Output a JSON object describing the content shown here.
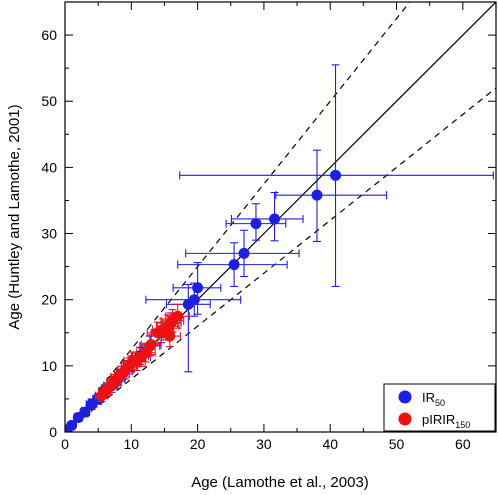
{
  "chart_data": {
    "type": "scatter",
    "xlabel": "Age (Lamothe et al., 2003)",
    "ylabel": "Age (Huntley and Lamothe, 2001)",
    "xlim": [
      0,
      65
    ],
    "ylim": [
      0,
      65
    ],
    "xticks": [
      0,
      10,
      20,
      30,
      40,
      50,
      60
    ],
    "yticks": [
      0,
      10,
      20,
      30,
      40,
      50,
      60
    ],
    "grid": false,
    "legend_placement": "bottom-right",
    "reference_lines": [
      {
        "style": "solid",
        "slope": 1.0
      },
      {
        "style": "dashed",
        "slope": 1.25
      },
      {
        "style": "dashed",
        "slope": 0.8
      }
    ],
    "series": [
      {
        "legend_main": "IR",
        "legend_sub": "50",
        "color": "#1f1fe0",
        "points": [
          {
            "x": 40.8,
            "y": 38.8,
            "xerr_lo": 23.5,
            "xerr_hi": 23.8,
            "yerr_lo": 16.8,
            "yerr_hi": 16.7
          },
          {
            "x": 38.0,
            "y": 35.8,
            "xerr_lo": 6.2,
            "xerr_hi": 10.5,
            "yerr_lo": 7.0,
            "yerr_hi": 6.8
          },
          {
            "x": 31.6,
            "y": 32.2,
            "xerr_lo": 6.5,
            "xerr_hi": 4.3,
            "yerr_lo": 3.3,
            "yerr_hi": 4.0
          },
          {
            "x": 28.8,
            "y": 31.5,
            "xerr_lo": 4.5,
            "xerr_hi": 4.5,
            "yerr_lo": 2.5,
            "yerr_hi": 3.0
          },
          {
            "x": 27.0,
            "y": 27.0,
            "xerr_lo": 8.8,
            "xerr_hi": 8.3,
            "yerr_lo": 3.5,
            "yerr_hi": 3.5
          },
          {
            "x": 25.5,
            "y": 25.3,
            "xerr_lo": 8.5,
            "xerr_hi": 8.0,
            "yerr_lo": 3.3,
            "yerr_hi": 3.3
          },
          {
            "x": 20.0,
            "y": 21.8,
            "xerr_lo": 3.7,
            "xerr_hi": 3.5,
            "yerr_lo": 4.0,
            "yerr_hi": 3.8
          },
          {
            "x": 19.5,
            "y": 20.0,
            "xerr_lo": 7.3,
            "xerr_hi": 7.0,
            "yerr_lo": 2.5,
            "yerr_hi": 2.5
          },
          {
            "x": 18.6,
            "y": 19.3,
            "xerr_lo": 3.3,
            "xerr_hi": 3.3,
            "yerr_lo": 10.2,
            "yerr_hi": 3.0
          },
          {
            "x": 16.0,
            "y": 16.5,
            "xerr_lo": 1.5,
            "xerr_hi": 1.5,
            "yerr_lo": 1.5,
            "yerr_hi": 1.5
          },
          {
            "x": 14.5,
            "y": 15.0,
            "xerr_lo": 1.5,
            "xerr_hi": 1.5,
            "yerr_lo": 1.5,
            "yerr_hi": 1.5
          },
          {
            "x": 12.8,
            "y": 13.0,
            "xerr_lo": 1.5,
            "xerr_hi": 1.5,
            "yerr_lo": 1.5,
            "yerr_hi": 1.5
          },
          {
            "x": 11.3,
            "y": 11.5,
            "xerr_lo": 1.3,
            "xerr_hi": 1.3,
            "yerr_lo": 1.3,
            "yerr_hi": 1.3
          },
          {
            "x": 10.0,
            "y": 10.3,
            "xerr_lo": 1.2,
            "xerr_hi": 1.2,
            "yerr_lo": 1.2,
            "yerr_hi": 1.2
          },
          {
            "x": 9.0,
            "y": 9.2,
            "xerr_lo": 1.2,
            "xerr_hi": 1.2,
            "yerr_lo": 1.2,
            "yerr_hi": 1.2
          },
          {
            "x": 8.0,
            "y": 8.0,
            "xerr_lo": 1.0,
            "xerr_hi": 1.0,
            "yerr_lo": 1.0,
            "yerr_hi": 1.0
          },
          {
            "x": 7.0,
            "y": 7.0,
            "xerr_lo": 1.0,
            "xerr_hi": 1.0,
            "yerr_lo": 1.0,
            "yerr_hi": 1.0
          },
          {
            "x": 6.0,
            "y": 6.2,
            "xerr_lo": 0.9,
            "xerr_hi": 0.9,
            "yerr_lo": 0.9,
            "yerr_hi": 0.9
          },
          {
            "x": 5.0,
            "y": 5.0,
            "xerr_lo": 0.8,
            "xerr_hi": 0.8,
            "yerr_lo": 0.8,
            "yerr_hi": 0.8
          },
          {
            "x": 4.0,
            "y": 4.2,
            "xerr_lo": 0.8,
            "xerr_hi": 0.8,
            "yerr_lo": 0.8,
            "yerr_hi": 0.8
          },
          {
            "x": 3.0,
            "y": 3.0,
            "xerr_lo": 0.7,
            "xerr_hi": 0.7,
            "yerr_lo": 0.7,
            "yerr_hi": 0.7
          },
          {
            "x": 2.0,
            "y": 2.2,
            "xerr_lo": 0.6,
            "xerr_hi": 0.6,
            "yerr_lo": 0.6,
            "yerr_hi": 0.6
          },
          {
            "x": 1.0,
            "y": 1.0,
            "xerr_lo": 0.5,
            "xerr_hi": 0.5,
            "yerr_lo": 0.5,
            "yerr_hi": 0.5
          },
          {
            "x": 0.3,
            "y": 0.3,
            "xerr_lo": 0.3,
            "xerr_hi": 0.3,
            "yerr_lo": 0.3,
            "yerr_hi": 0.3
          }
        ]
      },
      {
        "legend_main": "pIRIR",
        "legend_sub": "150",
        "color": "#ee1111",
        "points": [
          {
            "x": 17.0,
            "y": 17.5,
            "xerr_lo": 1.8,
            "xerr_hi": 1.8,
            "yerr_lo": 1.8,
            "yerr_hi": 1.8
          },
          {
            "x": 16.2,
            "y": 16.8,
            "xerr_lo": 1.7,
            "xerr_hi": 1.7,
            "yerr_lo": 1.7,
            "yerr_hi": 1.7
          },
          {
            "x": 15.5,
            "y": 16.0,
            "xerr_lo": 1.7,
            "xerr_hi": 1.7,
            "yerr_lo": 1.7,
            "yerr_hi": 1.7
          },
          {
            "x": 14.8,
            "y": 15.5,
            "xerr_lo": 1.6,
            "xerr_hi": 1.6,
            "yerr_lo": 1.6,
            "yerr_hi": 1.6
          },
          {
            "x": 14.0,
            "y": 15.0,
            "xerr_lo": 1.6,
            "xerr_hi": 1.6,
            "yerr_lo": 1.6,
            "yerr_hi": 1.6
          },
          {
            "x": 15.8,
            "y": 14.5,
            "xerr_lo": 1.6,
            "xerr_hi": 1.6,
            "yerr_lo": 1.6,
            "yerr_hi": 1.6
          },
          {
            "x": 13.0,
            "y": 13.2,
            "xerr_lo": 1.5,
            "xerr_hi": 1.5,
            "yerr_lo": 1.5,
            "yerr_hi": 1.5
          },
          {
            "x": 12.2,
            "y": 12.0,
            "xerr_lo": 1.4,
            "xerr_hi": 1.4,
            "yerr_lo": 1.4,
            "yerr_hi": 1.4
          },
          {
            "x": 11.5,
            "y": 11.3,
            "xerr_lo": 1.4,
            "xerr_hi": 1.4,
            "yerr_lo": 1.4,
            "yerr_hi": 1.4
          },
          {
            "x": 10.8,
            "y": 10.6,
            "xerr_lo": 1.3,
            "xerr_hi": 1.3,
            "yerr_lo": 1.3,
            "yerr_hi": 1.3
          },
          {
            "x": 10.2,
            "y": 10.8,
            "xerr_lo": 1.3,
            "xerr_hi": 1.3,
            "yerr_lo": 1.3,
            "yerr_hi": 1.3
          },
          {
            "x": 9.7,
            "y": 10.0,
            "xerr_lo": 1.2,
            "xerr_hi": 1.2,
            "yerr_lo": 1.2,
            "yerr_hi": 1.2
          },
          {
            "x": 9.2,
            "y": 9.5,
            "xerr_lo": 1.2,
            "xerr_hi": 1.2,
            "yerr_lo": 1.2,
            "yerr_hi": 1.2
          },
          {
            "x": 8.6,
            "y": 8.8,
            "xerr_lo": 1.1,
            "xerr_hi": 1.1,
            "yerr_lo": 1.1,
            "yerr_hi": 1.1
          },
          {
            "x": 8.0,
            "y": 8.3,
            "xerr_lo": 1.1,
            "xerr_hi": 1.1,
            "yerr_lo": 1.1,
            "yerr_hi": 1.1
          },
          {
            "x": 7.4,
            "y": 7.7,
            "xerr_lo": 1.0,
            "xerr_hi": 1.0,
            "yerr_lo": 1.0,
            "yerr_hi": 1.0
          },
          {
            "x": 6.8,
            "y": 7.0,
            "xerr_lo": 1.0,
            "xerr_hi": 1.0,
            "yerr_lo": 1.0,
            "yerr_hi": 1.0
          },
          {
            "x": 6.0,
            "y": 6.0,
            "xerr_lo": 0.9,
            "xerr_hi": 0.9,
            "yerr_lo": 0.9,
            "yerr_hi": 0.9
          },
          {
            "x": 5.5,
            "y": 5.5,
            "xerr_lo": 0.9,
            "xerr_hi": 0.9,
            "yerr_lo": 0.9,
            "yerr_hi": 0.9
          }
        ]
      }
    ]
  }
}
